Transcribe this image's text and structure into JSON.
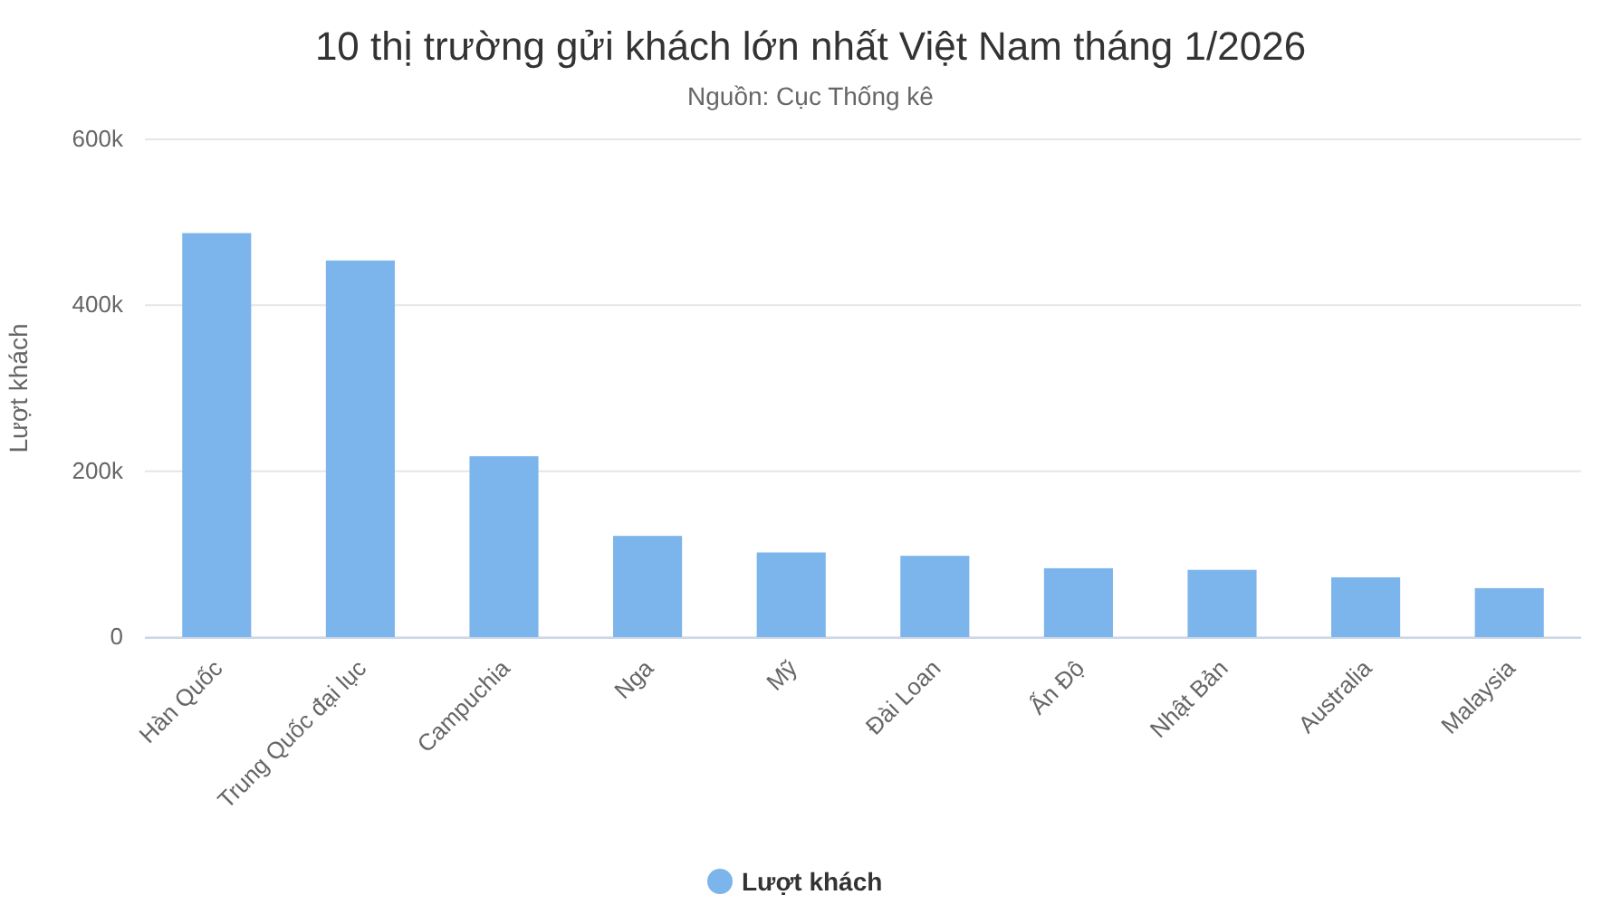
{
  "chart_data": {
    "type": "bar",
    "title": "10 thị trường gửi khách lớn nhất Việt Nam tháng 1/2026",
    "subtitle": "Nguồn: Cục Thống kê",
    "ylabel": "Lượt khách",
    "categories": [
      "Hàn Quốc",
      "Trung Quốc đại lục",
      "Campuchia",
      "Nga",
      "Mỹ",
      "Đài Loan",
      "Ấn Độ",
      "Nhật Bản",
      "Australia",
      "Malaysia"
    ],
    "series": [
      {
        "name": "Lượt khách",
        "color": "#7cb5ec",
        "values": [
          487000,
          454000,
          218000,
          122000,
          102000,
          98000,
          83000,
          81000,
          72000,
          59000
        ]
      }
    ],
    "ylim": [
      0,
      600000
    ],
    "yticks": [
      {
        "value": 0,
        "label": "0"
      },
      {
        "value": 200000,
        "label": "200k"
      },
      {
        "value": 400000,
        "label": "400k"
      },
      {
        "value": 600000,
        "label": "600k"
      }
    ],
    "grid": true,
    "legend": "bottom"
  }
}
